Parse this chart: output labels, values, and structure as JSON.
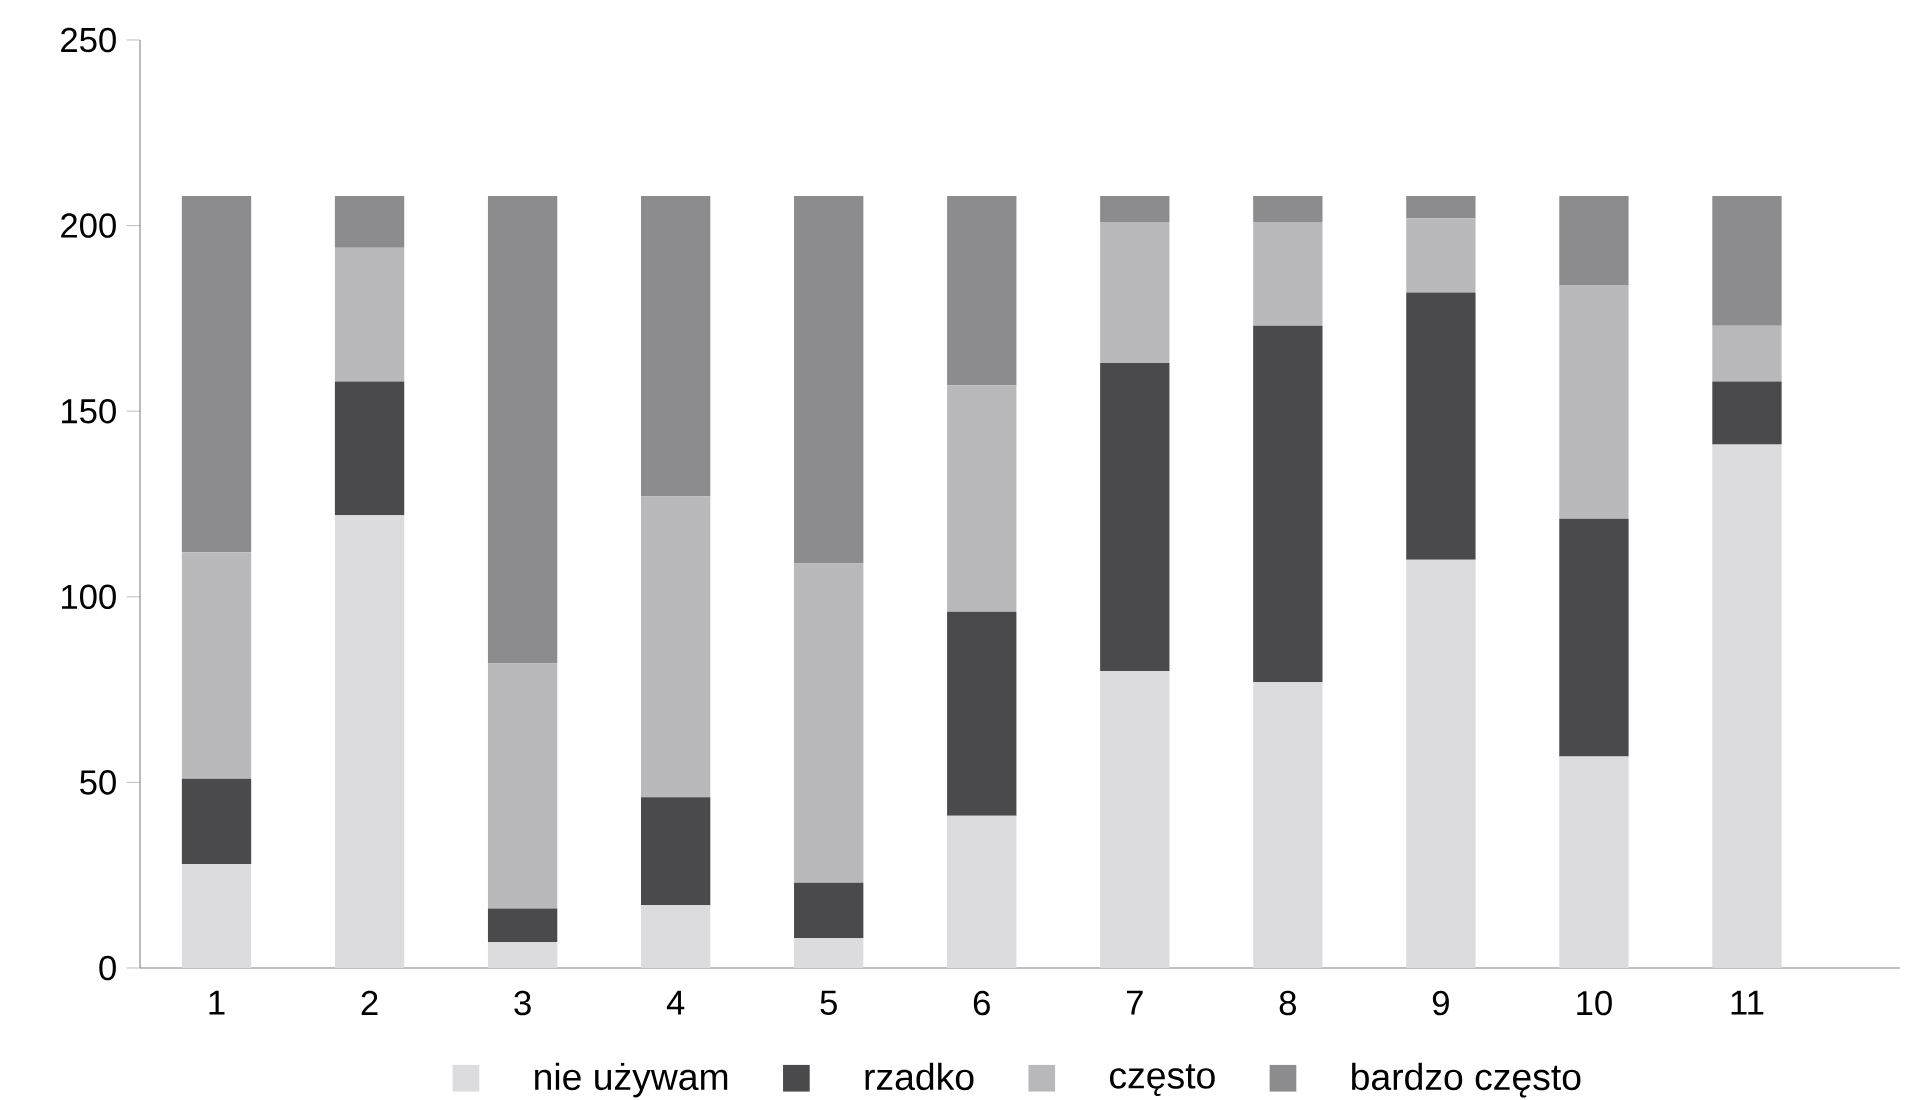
{
  "chart_data": {
    "type": "bar",
    "stacked": true,
    "categories": [
      "1",
      "2",
      "3",
      "4",
      "5",
      "6",
      "7",
      "8",
      "9",
      "10",
      "11"
    ],
    "series": [
      {
        "name": "nie używam",
        "color": "#dcdcde",
        "values": [
          28,
          122,
          7,
          17,
          8,
          41,
          80,
          77,
          110,
          57,
          141
        ]
      },
      {
        "name": "rzadko",
        "color": "#4a4a4c",
        "values": [
          23,
          36,
          9,
          29,
          15,
          55,
          83,
          96,
          72,
          64,
          17
        ]
      },
      {
        "name": "często",
        "color": "#b9b9bc",
        "values": [
          61,
          36,
          66,
          81,
          86,
          61,
          38,
          28,
          20,
          63,
          15
        ]
      },
      {
        "name": "bardzo często",
        "color": "#8c8c8e",
        "values": [
          96,
          14,
          126,
          81,
          99,
          51,
          7,
          7,
          6,
          24,
          35
        ]
      }
    ],
    "ylim": [
      0,
      250
    ],
    "yticks": [
      0,
      50,
      100,
      150,
      200,
      250
    ],
    "grid": false,
    "legend": "bottom"
  }
}
